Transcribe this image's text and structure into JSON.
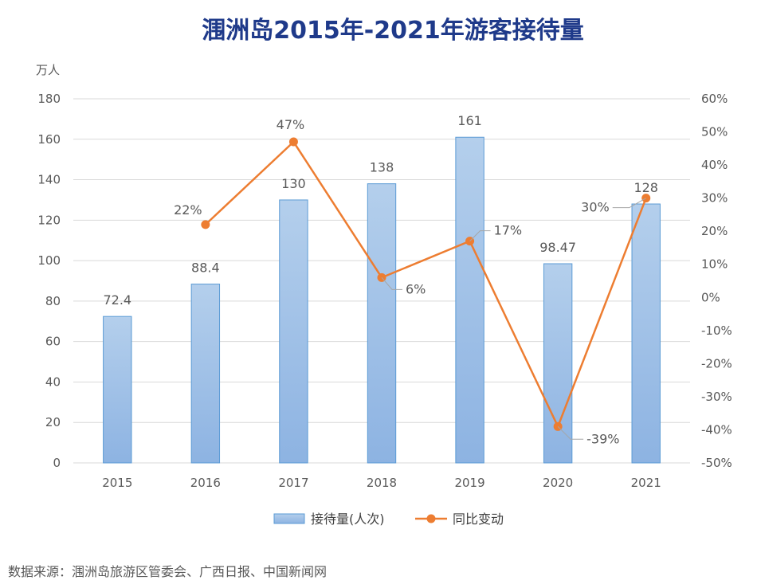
{
  "chart_data": {
    "type": "bar",
    "title": "涠洲岛2015年-2021年游客接待量",
    "ylabel": "万人",
    "categories": [
      "2015",
      "2016",
      "2017",
      "2018",
      "2019",
      "2020",
      "2021"
    ],
    "ylim": [
      0,
      180
    ],
    "yticks": [
      0,
      20,
      40,
      60,
      80,
      100,
      120,
      140,
      160,
      180
    ],
    "y2lim": [
      -50,
      60
    ],
    "y2ticks": [
      -50,
      -40,
      -30,
      -20,
      -10,
      0,
      10,
      20,
      30,
      40,
      50,
      60
    ],
    "y2tick_suffix": "%",
    "grid": true,
    "legend_position": "bottom",
    "series": [
      {
        "name": "接待量(人次)",
        "type": "bar",
        "axis": "left",
        "values": [
          72.4,
          88.4,
          130,
          138,
          161,
          98.47,
          128
        ],
        "labels": [
          "72.4",
          "88.4",
          "130",
          "138",
          "161",
          "98.47",
          "128"
        ],
        "color": "#9DC3E6"
      },
      {
        "name": "同比变动",
        "type": "line",
        "axis": "right",
        "values": [
          null,
          22,
          47,
          6,
          17,
          -39,
          30
        ],
        "labels": [
          "",
          "22%",
          "47%",
          "6%",
          "17%",
          "-39%",
          "30%"
        ],
        "color": "#ED7D31"
      }
    ]
  },
  "source": "数据来源：涠洲岛旅游区管委会、广西日报、中国新闻网"
}
